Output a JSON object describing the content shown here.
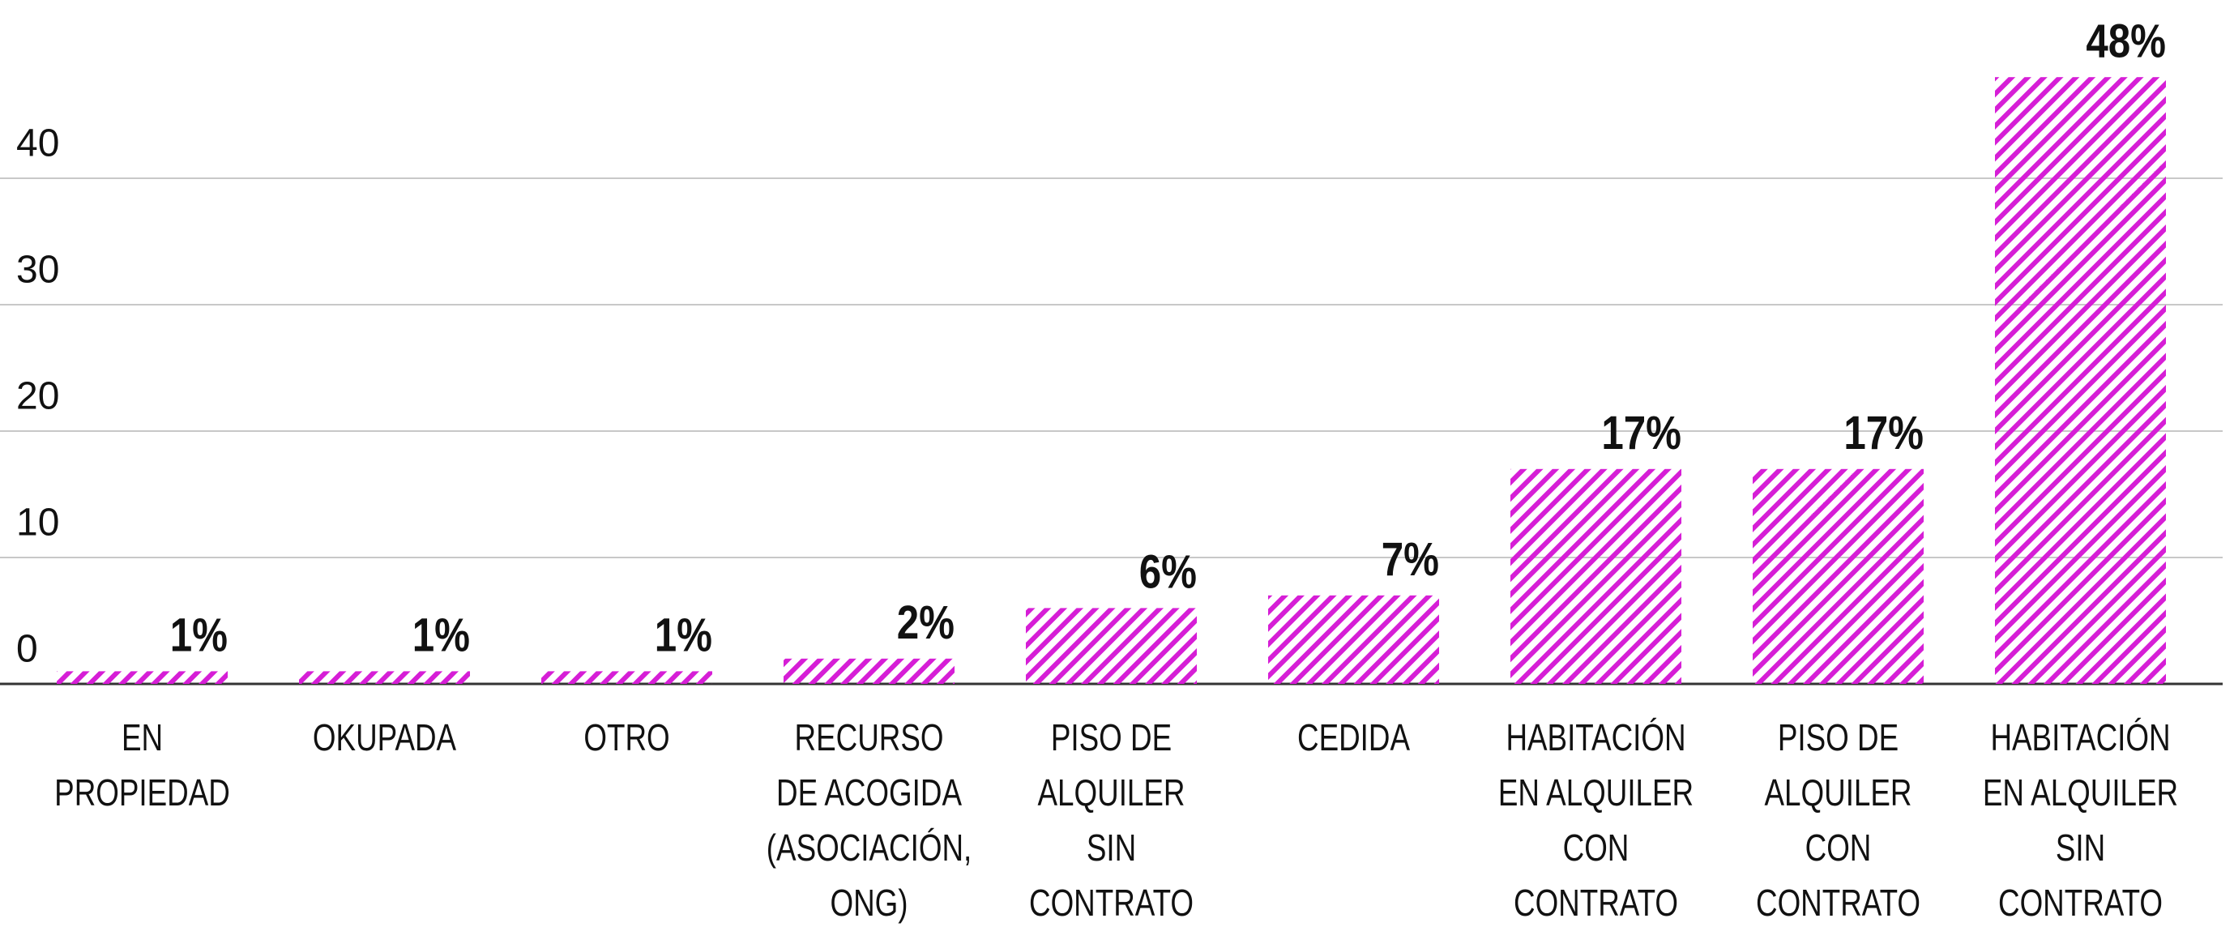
{
  "chart_data": {
    "type": "bar",
    "categories": [
      "EN\nPROPIEDAD",
      "OKUPADA",
      "OTRO",
      "RECURSO\nDE ACOGIDA\n(ASOCIACIÓN,\nONG)",
      "PISO DE\nALQUILER\nSIN\nCONTRATO",
      "CEDIDA",
      "HABITACIÓN\nEN ALQUILER\nCON\nCONTRATO",
      "PISO DE\nALQUILER\nCON\nCONTRATO",
      "HABITACIÓN\nEN ALQUILER\nSIN\nCONTRATO"
    ],
    "values": [
      1,
      1,
      1,
      2,
      6,
      7,
      17,
      17,
      48
    ],
    "value_labels": [
      "1%",
      "1%",
      "1%",
      "2%",
      "6%",
      "7%",
      "17%",
      "17%",
      "48%"
    ],
    "color": "#d61ed6",
    "ylim": [
      0,
      50
    ],
    "yticks": [
      0,
      10,
      20,
      30,
      40
    ],
    "grid": true
  }
}
